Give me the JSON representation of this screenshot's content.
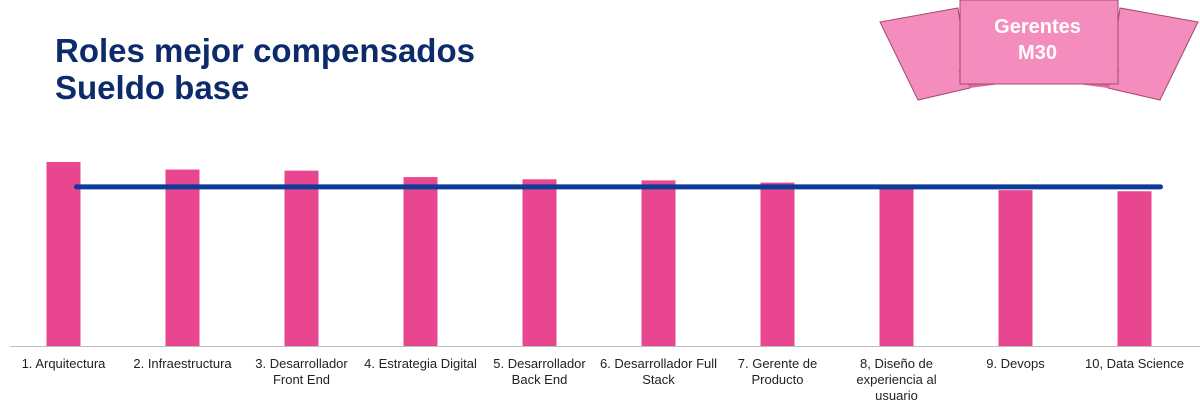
{
  "title": {
    "line1": "Roles mejor compensados",
    "line2": "Sueldo base"
  },
  "banner": {
    "line1": "Gerentes",
    "line2": "M30"
  },
  "colors": {
    "bar": "#e8468f",
    "reference_line": "#0d3b9a",
    "title": "#0d2a6b",
    "banner_fill": "#f48cbd",
    "banner_dark": "#d9699f",
    "banner_stroke": "#a34a6e"
  },
  "chart_data": {
    "type": "bar",
    "title": "",
    "xlabel": "",
    "ylabel": "",
    "ylim": [
      0,
      100
    ],
    "grid": false,
    "categories": [
      "1. Arquitectura",
      "2. Infraestructura",
      "3. Desarrollador Front End",
      "4. Estrategia Digital",
      "5. Desarrollador Back End",
      "6. Desarrollador Full Stack",
      "7. Gerente de Producto",
      "8, Diseño de experiencia al usuario",
      "9. Devops",
      "10, Data Science"
    ],
    "values": [
      100,
      95.9,
      95.3,
      91.8,
      90.6,
      90.0,
      88.8,
      87.6,
      84.7,
      84.1
    ],
    "reference_line": 86.5
  }
}
